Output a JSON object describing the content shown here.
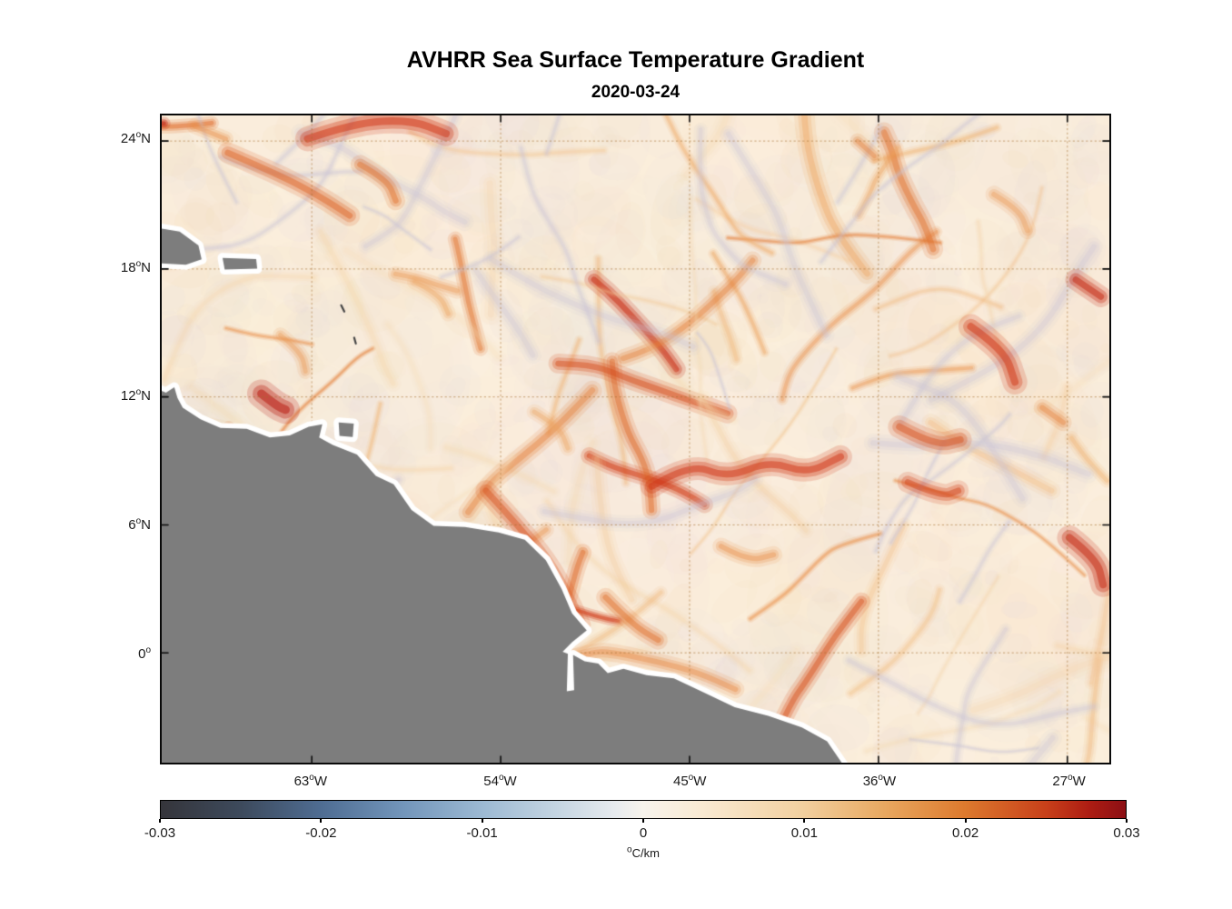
{
  "title": "AVHRR Sea Surface Temperature Gradient",
  "subtitle": "2020-03-24",
  "axes": {
    "lon_range": [
      -70.15,
      -25.0
    ],
    "lat_range": [
      -5.15,
      25.2
    ],
    "x_ticks": [
      {
        "value": -63,
        "label": "63°W"
      },
      {
        "value": -54,
        "label": "54°W"
      },
      {
        "value": -45,
        "label": "45°W"
      },
      {
        "value": -36,
        "label": "36°W"
      },
      {
        "value": -27,
        "label": "27°W"
      }
    ],
    "y_ticks": [
      {
        "value": 24,
        "label": "24°N"
      },
      {
        "value": 18,
        "label": "18°N"
      },
      {
        "value": 12,
        "label": "12°N"
      },
      {
        "value": 6,
        "label": "6°N"
      },
      {
        "value": 0,
        "label": "0°"
      }
    ],
    "grid": "dotted"
  },
  "colorbar": {
    "min": -0.03,
    "max": 0.03,
    "unit": "°C/km",
    "ticks": [
      {
        "value": -0.03,
        "label": "-0.03"
      },
      {
        "value": -0.02,
        "label": "-0.02"
      },
      {
        "value": -0.01,
        "label": "-0.01"
      },
      {
        "value": 0,
        "label": "0"
      },
      {
        "value": 0.01,
        "label": "0.01"
      },
      {
        "value": 0.02,
        "label": "0.02"
      },
      {
        "value": 0.03,
        "label": "0.03"
      }
    ],
    "stops": [
      {
        "p": 0.0,
        "c": "#35353b"
      },
      {
        "p": 0.083,
        "c": "#3d4a5c"
      },
      {
        "p": 0.167,
        "c": "#4f6d93"
      },
      {
        "p": 0.25,
        "c": "#7295ba"
      },
      {
        "p": 0.333,
        "c": "#9cb9d3"
      },
      {
        "p": 0.417,
        "c": "#c8d7e3"
      },
      {
        "p": 0.47,
        "c": "#e6eaee"
      },
      {
        "p": 0.5,
        "c": "#f7f3ec"
      },
      {
        "p": 0.56,
        "c": "#f9ead3"
      },
      {
        "p": 0.667,
        "c": "#f2cf9e"
      },
      {
        "p": 0.75,
        "c": "#e8a860"
      },
      {
        "p": 0.833,
        "c": "#dd7a2e"
      },
      {
        "p": 0.917,
        "c": "#c8401a"
      },
      {
        "p": 0.962,
        "c": "#ad1d13"
      },
      {
        "p": 1.0,
        "c": "#8c0f14"
      }
    ]
  },
  "chart_data": {
    "type": "heatmap",
    "title": "AVHRR Sea Surface Temperature Gradient",
    "date": "2020-03-24",
    "x_axis": {
      "tick_labels": [
        "63°W",
        "54°W",
        "45°W",
        "36°W",
        "27°W"
      ],
      "range_deg_lon": [
        -70.15,
        -25.0
      ]
    },
    "y_axis": {
      "tick_labels": [
        "24°N",
        "18°N",
        "12°N",
        "6°N",
        "0°"
      ],
      "range_deg_lat": [
        -5.15,
        25.2
      ]
    },
    "value_range": [
      -0.03,
      0.03
    ],
    "unit": "°C/km",
    "colormap": "diverging dark-blue / white / dark-red (balance)",
    "grid": "dotted",
    "legend_position": "colorbar-south"
  },
  "map": {
    "colors": {
      "ocean": "#fbeedb",
      "land": "#7d7d7d",
      "coast_buffer": "#ffffff",
      "grid": "rgba(165,110,45,0.6)",
      "frame": "#0a0a0a"
    },
    "land": {
      "main": [
        [
          -70.8,
          12.55
        ],
        [
          -69.95,
          12.2
        ],
        [
          -69.55,
          12.45
        ],
        [
          -69.4,
          11.95
        ],
        [
          -69.15,
          11.5
        ],
        [
          -68.3,
          10.95
        ],
        [
          -67.35,
          10.55
        ],
        [
          -66.1,
          10.5
        ],
        [
          -65.0,
          10.1
        ],
        [
          -64.05,
          10.2
        ],
        [
          -63.15,
          10.6
        ],
        [
          -62.5,
          10.72
        ],
        [
          -62.65,
          10.1
        ],
        [
          -62.0,
          9.75
        ],
        [
          -60.85,
          9.3
        ],
        [
          -59.95,
          8.3
        ],
        [
          -59.1,
          7.9
        ],
        [
          -58.25,
          6.7
        ],
        [
          -57.2,
          5.95
        ],
        [
          -55.7,
          5.9
        ],
        [
          -54.1,
          5.65
        ],
        [
          -52.85,
          5.3
        ],
        [
          -51.85,
          4.35
        ],
        [
          -51.1,
          3.0
        ],
        [
          -50.6,
          1.85
        ],
        [
          -49.9,
          1.05
        ],
        [
          -50.6,
          0.5
        ],
        [
          -51.05,
          0.05
        ],
        [
          -50.8,
          -0.05
        ],
        [
          -50.85,
          -1.8
        ],
        [
          -50.5,
          -1.75
        ],
        [
          -50.55,
          -0.1
        ],
        [
          -50.0,
          -0.4
        ],
        [
          -49.35,
          -0.5
        ],
        [
          -48.9,
          -0.95
        ],
        [
          -48.15,
          -0.75
        ],
        [
          -47.05,
          -1.05
        ],
        [
          -45.75,
          -1.2
        ],
        [
          -44.35,
          -1.85
        ],
        [
          -42.85,
          -2.55
        ],
        [
          -41.25,
          -2.95
        ],
        [
          -39.65,
          -3.5
        ],
        [
          -38.45,
          -4.15
        ],
        [
          -37.3,
          -5.8
        ],
        [
          -70.8,
          -5.8
        ]
      ],
      "hispaniola": [
        [
          -70.8,
          20.0
        ],
        [
          -69.3,
          19.75
        ],
        [
          -68.4,
          19.1
        ],
        [
          -68.25,
          18.45
        ],
        [
          -69.0,
          18.2
        ],
        [
          -70.8,
          18.3
        ]
      ],
      "puerto_rico": [
        [
          -67.25,
          18.52
        ],
        [
          -65.65,
          18.47
        ],
        [
          -65.6,
          18.02
        ],
        [
          -67.15,
          17.97
        ]
      ],
      "trinidad": [
        [
          -61.72,
          10.8
        ],
        [
          -61.0,
          10.75
        ],
        [
          -61.05,
          10.12
        ],
        [
          -61.68,
          10.17
        ]
      ],
      "specks": [
        [
          [
            -61.6,
            16.3
          ],
          [
            -61.45,
            16.0
          ]
        ],
        [
          [
            -60.98,
            14.78
          ],
          [
            -60.9,
            14.5
          ]
        ]
      ]
    },
    "features": [
      {
        "pts": [
          [
            -63.2,
            24.1
          ],
          [
            -61.0,
            24.85
          ],
          [
            -58.3,
            25.0
          ],
          [
            -56.6,
            24.35
          ]
        ],
        "w": 13,
        "i": 0.9
      },
      {
        "pts": [
          [
            -67.0,
            23.45
          ],
          [
            -64.5,
            22.4
          ],
          [
            -62.6,
            21.4
          ],
          [
            -61.2,
            20.5
          ]
        ],
        "w": 11,
        "i": 0.75
      },
      {
        "pts": [
          [
            -60.7,
            22.9
          ],
          [
            -59.4,
            22.2
          ],
          [
            -59.0,
            21.2
          ]
        ],
        "w": 10,
        "i": 0.7
      },
      {
        "pts": [
          [
            -65.4,
            12.15
          ],
          [
            -64.7,
            11.6
          ],
          [
            -64.25,
            11.4
          ]
        ],
        "w": 15,
        "i": 1.0
      },
      {
        "pts": [
          [
            -54.7,
            7.6
          ],
          [
            -53.2,
            6.0
          ],
          [
            -51.8,
            4.3
          ],
          [
            -50.8,
            2.6
          ],
          [
            -50.2,
            1.3
          ]
        ],
        "w": 11,
        "i": 0.8
      },
      {
        "pts": [
          [
            -46.8,
            7.8
          ],
          [
            -45.0,
            8.9
          ],
          [
            -43.2,
            8.2
          ],
          [
            -41.2,
            9.0
          ],
          [
            -39.4,
            8.4
          ],
          [
            -37.8,
            9.2
          ]
        ],
        "w": 12,
        "i": 0.9
      },
      {
        "pts": [
          [
            -31.6,
            15.3
          ],
          [
            -30.0,
            14.2
          ],
          [
            -29.5,
            12.7
          ]
        ],
        "w": 13,
        "i": 0.9
      },
      {
        "pts": [
          [
            -26.6,
            17.5
          ],
          [
            -25.4,
            16.7
          ]
        ],
        "w": 11,
        "i": 0.95
      },
      {
        "pts": [
          [
            -26.9,
            5.4
          ],
          [
            -25.6,
            4.4
          ],
          [
            -25.3,
            3.2
          ]
        ],
        "w": 13,
        "i": 0.95
      },
      {
        "pts": [
          [
            -35.0,
            10.6
          ],
          [
            -33.3,
            9.7
          ],
          [
            -32.1,
            10.0
          ]
        ],
        "w": 12,
        "i": 0.8
      },
      {
        "pts": [
          [
            -49.0,
            2.6
          ],
          [
            -47.7,
            1.3
          ],
          [
            -46.5,
            0.6
          ]
        ],
        "w": 10,
        "i": 0.7
      },
      {
        "pts": [
          [
            -37.0,
            24.0
          ],
          [
            -36.2,
            23.3
          ]
        ],
        "w": 8,
        "i": 0.6
      },
      {
        "pts": [
          [
            -34.6,
            8.0
          ],
          [
            -33.0,
            7.3
          ],
          [
            -32.2,
            7.6
          ]
        ],
        "w": 11,
        "i": 0.85
      },
      {
        "pts": [
          [
            -28.2,
            11.5
          ],
          [
            -27.2,
            10.8
          ]
        ],
        "w": 9,
        "i": 0.6
      },
      {
        "pts": [
          [
            -64.5,
            14.9
          ],
          [
            -63.5,
            14.1
          ],
          [
            -63.3,
            13.2
          ]
        ],
        "w": 8,
        "i": 0.5
      },
      {
        "pts": [
          [
            -68.6,
            24.7
          ],
          [
            -67.1,
            24.1
          ]
        ],
        "w": 8,
        "i": 0.55
      },
      {
        "pts": [
          [
            -58.1,
            17.4
          ],
          [
            -56.9,
            16.8
          ],
          [
            -56.5,
            15.9
          ]
        ],
        "w": 8,
        "i": 0.45
      },
      {
        "pts": [
          [
            -43.5,
            5.0
          ],
          [
            -42.2,
            4.3
          ],
          [
            -41.0,
            4.6
          ]
        ],
        "w": 9,
        "i": 0.55
      },
      {
        "pts": [
          [
            -30.5,
            21.5
          ],
          [
            -29.3,
            20.8
          ],
          [
            -28.9,
            19.8
          ]
        ],
        "w": 9,
        "i": 0.5
      },
      {
        "pts": [
          [
            -52.4,
            11.3
          ],
          [
            -51.2,
            10.6
          ],
          [
            -50.8,
            9.6
          ]
        ],
        "w": 8,
        "i": 0.45
      }
    ],
    "texture": {
      "seed": 20200324,
      "blobs": 1050,
      "large_blobs": 150,
      "warm_strokes": 95,
      "cool_strokes": 35
    }
  }
}
